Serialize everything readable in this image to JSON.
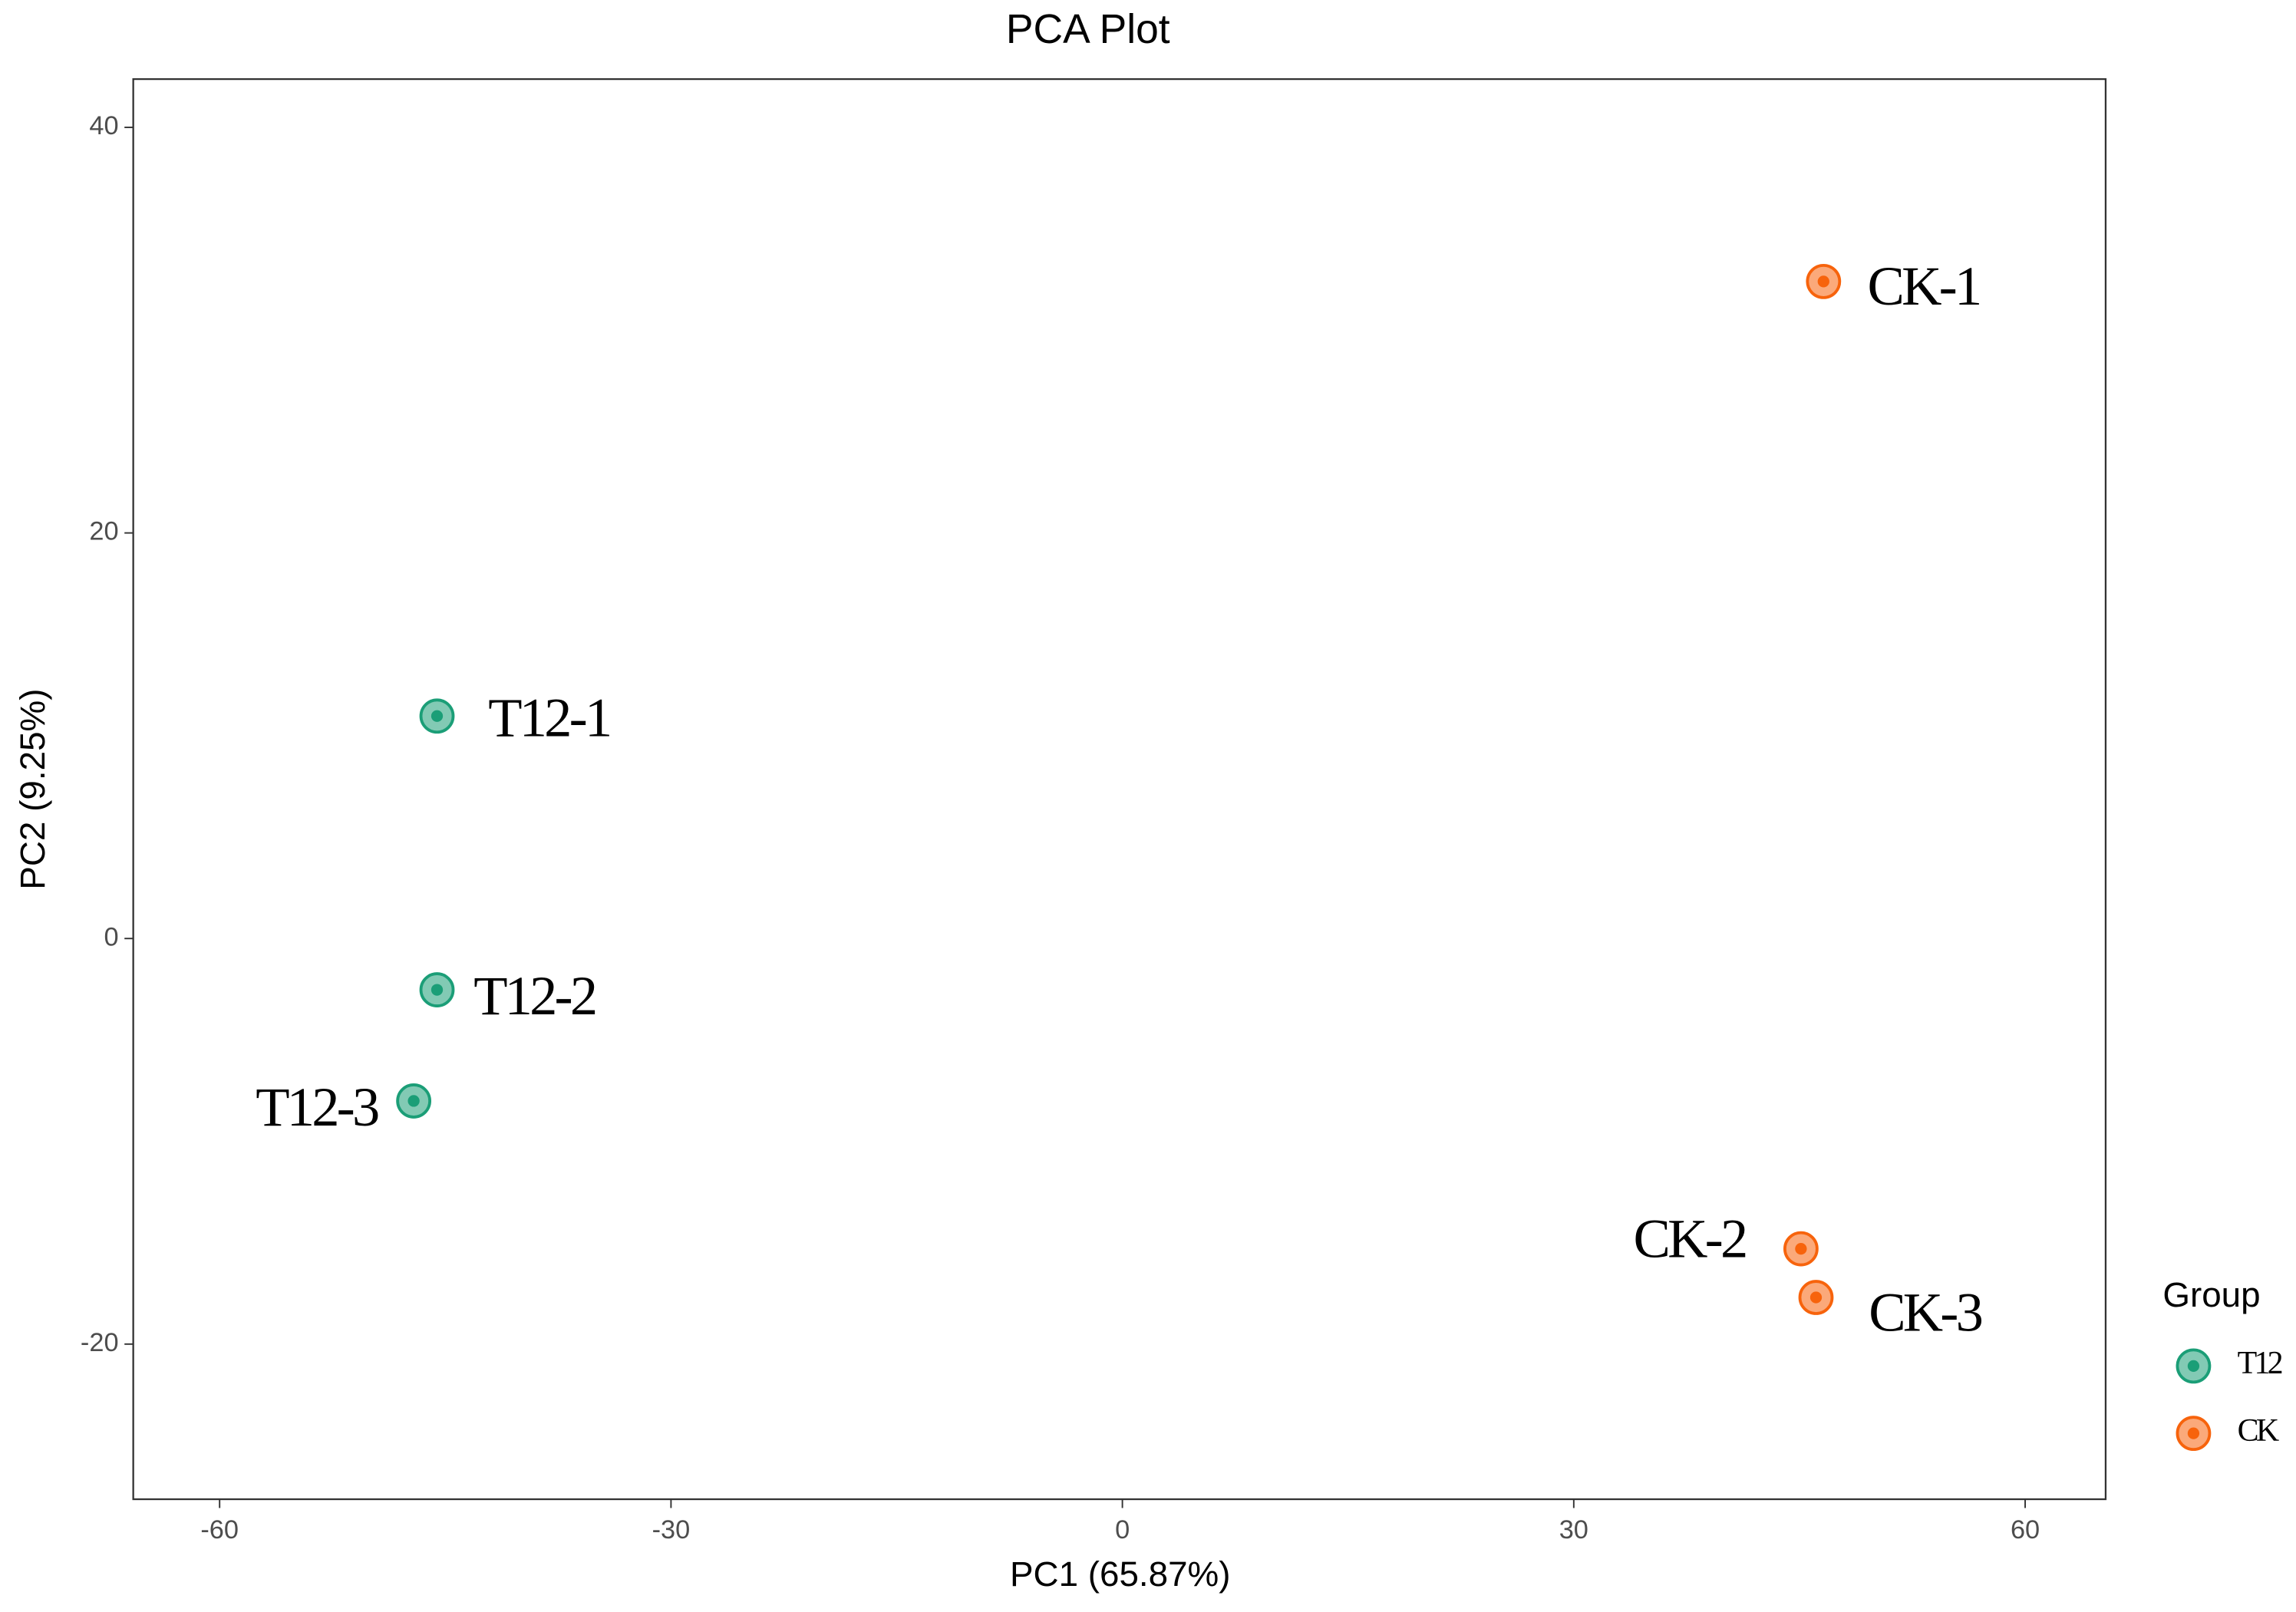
{
  "chart_data": {
    "type": "scatter",
    "title": "PCA Plot",
    "x_label": "PC1 (65.87%)",
    "y_label": "PC2 (9.25%)",
    "xlim": [
      -65.74,
      65.35
    ],
    "ylim": [
      -27.65,
      42.38
    ],
    "xticks": [
      -60,
      -30,
      0,
      30,
      60
    ],
    "yticks": [
      -20,
      0,
      20,
      40
    ],
    "grid": false,
    "legend_title": "Group",
    "legend_position": "right",
    "series": [
      {
        "name": "T12",
        "color": "#1b9e77",
        "x": [
          -45.55,
          -45.55,
          -47.1
        ],
        "values": [
          10.97,
          -2.53,
          -8.01
        ],
        "labels": [
          "T12-1",
          "T12-2",
          "T12-3"
        ]
      },
      {
        "name": "CK",
        "color": "#f7630c",
        "x": [
          46.6,
          45.1,
          46.1
        ],
        "values": [
          32.4,
          -15.3,
          -17.7
        ],
        "labels": [
          "CK-1",
          "CK-2",
          "CK-3"
        ]
      }
    ]
  }
}
